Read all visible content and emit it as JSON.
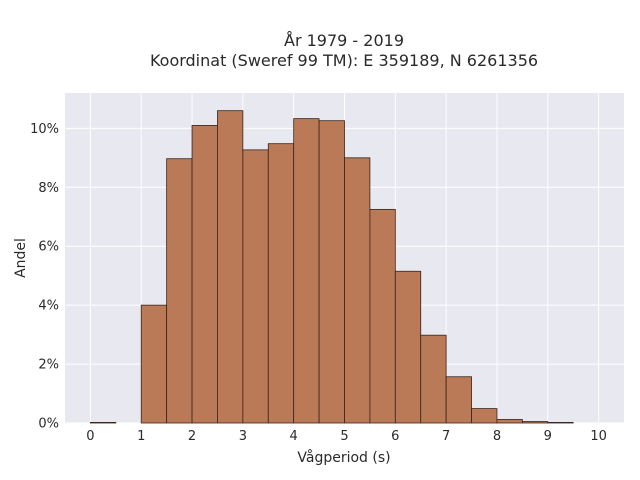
{
  "chart_data": {
    "type": "bar",
    "title_line1": "År 1979 - 2019",
    "title_line2": "Koordinat (Sweref 99 TM): E 359189, N 6261356",
    "xlabel": "Vågperiod (s)",
    "ylabel": "Andel",
    "bin_width": 0.5,
    "bin_starts": [
      0,
      0.5,
      1,
      1.5,
      2,
      2.5,
      3,
      3.5,
      4,
      4.5,
      5,
      5.5,
      6,
      6.5,
      7,
      7.5,
      8,
      8.5,
      9,
      9.5
    ],
    "values": [
      0.02,
      0,
      4.0,
      8.97,
      10.1,
      10.6,
      9.27,
      9.48,
      10.33,
      10.26,
      9.0,
      7.25,
      5.15,
      2.98,
      1.57,
      0.49,
      0.12,
      0.05,
      0.02,
      0
    ],
    "xlim": [
      -0.5,
      10.5
    ],
    "ylim": [
      0,
      11.2
    ],
    "x_ticks": [
      0,
      1,
      2,
      3,
      4,
      5,
      6,
      7,
      8,
      9,
      10
    ],
    "x_tick_labels": [
      "0",
      "1",
      "2",
      "3",
      "4",
      "5",
      "6",
      "7",
      "8",
      "9",
      "10"
    ],
    "y_ticks": [
      0,
      2,
      4,
      6,
      8,
      10
    ],
    "y_tick_labels": [
      "0%",
      "2%",
      "4%",
      "6%",
      "8%",
      "10%"
    ],
    "grid": true,
    "colors": {
      "bar_fill": "#bb7a57",
      "bar_edge": "#3a2418",
      "plot_bg": "#e8e8f0",
      "grid": "#ffffff"
    }
  }
}
